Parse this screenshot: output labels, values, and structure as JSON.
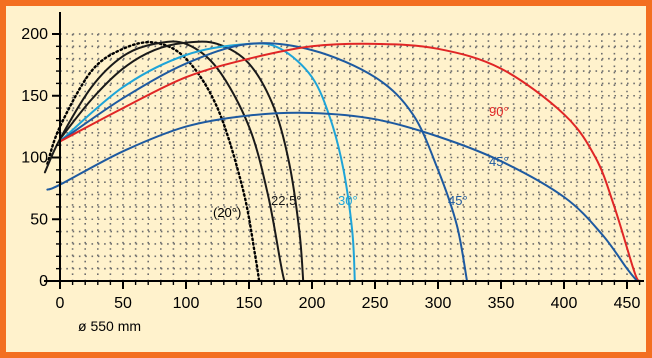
{
  "colors": {
    "frame": "#f36f21",
    "background": "#fff2cc",
    "axis": "#000000",
    "grid_dot": "#6d6d6d"
  },
  "chart_data": {
    "type": "line",
    "title": "",
    "xlabel": "",
    "ylabel": "",
    "xlim": [
      0,
      460
    ],
    "ylim": [
      0,
      200
    ],
    "x_ticks": [
      "0",
      "50",
      "100",
      "150",
      "200",
      "250",
      "300",
      "350",
      "400",
      "450"
    ],
    "y_ticks": [
      "0",
      "50",
      "100",
      "150",
      "200"
    ],
    "grid": "dotted",
    "footnote": "ø 550 mm",
    "series": [
      {
        "label": "(20°)",
        "color": "#000000",
        "style": "dotted",
        "points": [
          [
            -10,
            95
          ],
          [
            0,
            125
          ],
          [
            25,
            170
          ],
          [
            50,
            188
          ],
          [
            75,
            193
          ],
          [
            100,
            180
          ],
          [
            125,
            140
          ],
          [
            145,
            75
          ],
          [
            155,
            20
          ],
          [
            158,
            0
          ]
        ]
      },
      {
        "label": "22,5°",
        "color": "#1a1a1a",
        "style": "solid",
        "points": [
          [
            -12,
            88
          ],
          [
            0,
            115
          ],
          [
            25,
            157
          ],
          [
            50,
            182
          ],
          [
            75,
            192
          ],
          [
            100,
            192
          ],
          [
            125,
            172
          ],
          [
            150,
            125
          ],
          [
            165,
            70
          ],
          [
            175,
            15
          ],
          [
            178,
            0
          ]
        ]
      },
      {
        "label": "",
        "color": "#1a1a1a",
        "style": "solid",
        "points": [
          [
            0,
            115
          ],
          [
            25,
            147
          ],
          [
            50,
            172
          ],
          [
            75,
            187
          ],
          [
            100,
            193
          ],
          [
            125,
            192
          ],
          [
            150,
            176
          ],
          [
            170,
            140
          ],
          [
            182,
            95
          ],
          [
            190,
            40
          ],
          [
            193,
            0
          ]
        ]
      },
      {
        "label": "30°",
        "color": "#1ea4d8",
        "style": "solid",
        "points": [
          [
            0,
            113
          ],
          [
            50,
            157
          ],
          [
            100,
            183
          ],
          [
            150,
            192
          ],
          [
            175,
            188
          ],
          [
            200,
            165
          ],
          [
            215,
            130
          ],
          [
            225,
            90
          ],
          [
            232,
            40
          ],
          [
            234,
            0
          ]
        ]
      },
      {
        "label": "45°",
        "color": "#1e5aa0",
        "style": "solid",
        "points": [
          [
            0,
            113
          ],
          [
            50,
            148
          ],
          [
            100,
            176
          ],
          [
            150,
            192
          ],
          [
            200,
            187
          ],
          [
            250,
            165
          ],
          [
            280,
            135
          ],
          [
            300,
            90
          ],
          [
            315,
            45
          ],
          [
            323,
            0
          ]
        ]
      },
      {
        "label": "90°",
        "color": "#e02626",
        "style": "solid",
        "points": [
          [
            0,
            113
          ],
          [
            50,
            140
          ],
          [
            100,
            165
          ],
          [
            150,
            180
          ],
          [
            200,
            190
          ],
          [
            250,
            192
          ],
          [
            300,
            188
          ],
          [
            350,
            172
          ],
          [
            400,
            135
          ],
          [
            425,
            100
          ],
          [
            440,
            60
          ],
          [
            455,
            10
          ],
          [
            459,
            0
          ]
        ]
      },
      {
        "label": "45°",
        "color": "#1e5aa0",
        "style": "solid",
        "points": [
          [
            -10,
            74
          ],
          [
            0,
            78
          ],
          [
            50,
            105
          ],
          [
            100,
            125
          ],
          [
            150,
            134
          ],
          [
            200,
            136
          ],
          [
            250,
            131
          ],
          [
            300,
            117
          ],
          [
            350,
            97
          ],
          [
            400,
            68
          ],
          [
            430,
            38
          ],
          [
            450,
            10
          ],
          [
            458,
            0
          ]
        ]
      }
    ]
  }
}
